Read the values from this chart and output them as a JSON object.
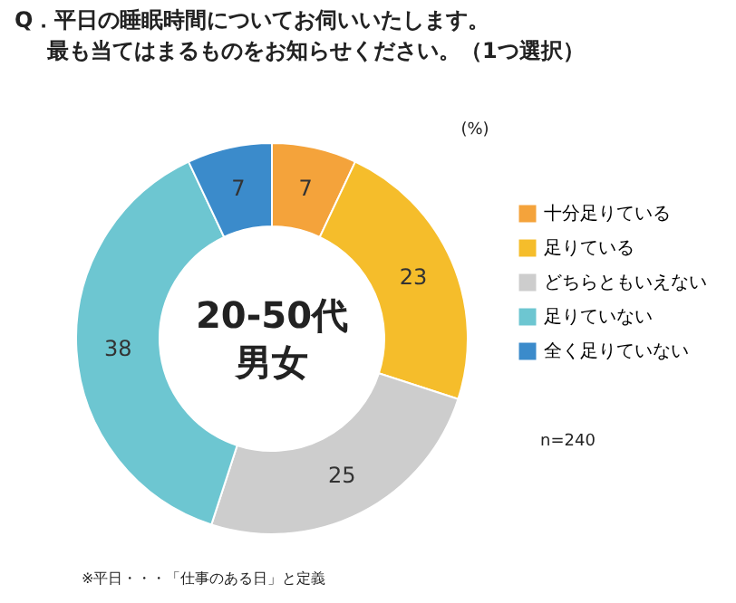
{
  "chart_data": {
    "type": "donut",
    "title": "Q．平日の睡眠時間についてお伺いいたします。最も当てはまるものをお知らせください。（1つ選択）",
    "categories": [
      "十分足りている",
      "足りている",
      "どちらともいえない",
      "足りていない",
      "全く足りていない"
    ],
    "values": [
      7,
      23,
      25,
      38,
      7
    ],
    "colors": [
      "#f4a33b",
      "#f5bd2b",
      "#cdcdcd",
      "#6dc6d1",
      "#3b8bcb"
    ],
    "data_labels": true,
    "legend": "right",
    "annotations": [
      "20-50代",
      "男女",
      "(%)",
      "n=240",
      "※平日・・・「仕事のある日」と定義"
    ]
  }
}
